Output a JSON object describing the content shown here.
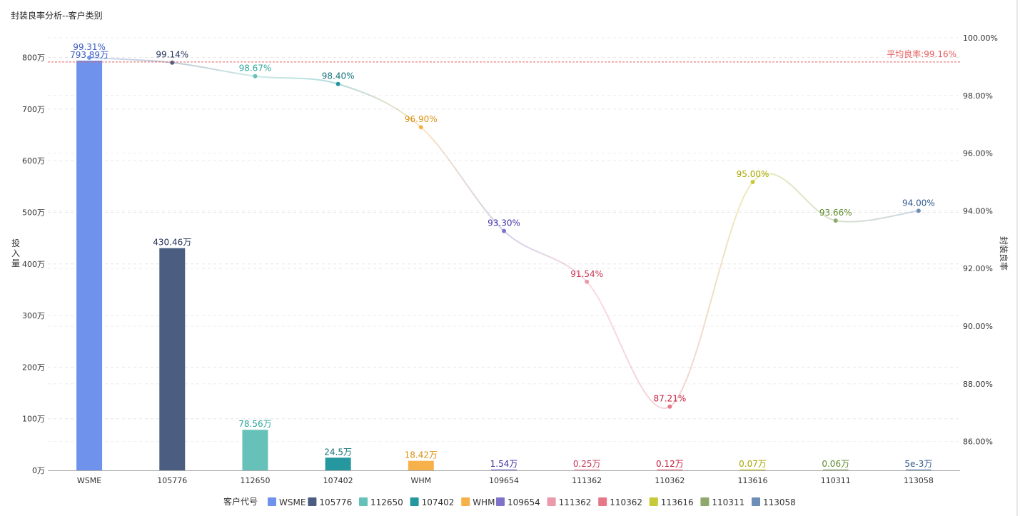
{
  "chart_data": {
    "type": "bar",
    "title": "封装良率分析--客户类别",
    "xlabel": "",
    "x_axis_categories": [
      "WSME",
      "105776",
      "112650",
      "107402",
      "WHM",
      "109654",
      "111362",
      "110362",
      "113616",
      "110311",
      "113058"
    ],
    "ylabel_left": "投入量",
    "ylabel_right": "封装良率",
    "ylim_left": [
      0,
      800
    ],
    "ylim_right": [
      85,
      100
    ],
    "left_ticks": [
      "0万",
      "100万",
      "200万",
      "300万",
      "400万",
      "500万",
      "600万",
      "700万",
      "800万"
    ],
    "right_ticks": [
      "86.00%",
      "88.00%",
      "90.00%",
      "92.00%",
      "94.00%",
      "96.00%",
      "98.00%",
      "100.00%"
    ],
    "grid": true,
    "legend_title": "客户代号",
    "legend_position": "bottom",
    "series": [
      {
        "name": "投入量",
        "type": "bar",
        "unit": "万",
        "values": [
          793.89,
          430.46,
          78.56,
          24.5,
          18.42,
          1.54,
          0.25,
          0.12,
          0.07,
          0.06,
          0.005
        ]
      },
      {
        "name": "封装良率",
        "type": "line",
        "unit": "%",
        "values": [
          99.31,
          99.14,
          98.67,
          98.4,
          96.9,
          93.3,
          91.54,
          87.21,
          95.0,
          93.66,
          94.0
        ]
      }
    ],
    "bar_labels": [
      "793.89万",
      "430.46万",
      "78.56万",
      "24.5万",
      "18.42万",
      "1.54万",
      "0.25万",
      "0.12万",
      "0.07万",
      "0.06万",
      "5e-3万"
    ],
    "line_labels": [
      "99.31%",
      "99.14%",
      "98.67%",
      "98.40%",
      "96.90%",
      "93.30%",
      "91.54%",
      "87.21%",
      "95.00%",
      "93.66%",
      "94.00%"
    ],
    "legend_entries": [
      "WSME",
      "105776",
      "112650",
      "107402",
      "WHM",
      "109654",
      "111362",
      "110362",
      "113616",
      "110311",
      "113058"
    ],
    "colors": [
      "#6f93ec",
      "#4b5e81",
      "#66c2b9",
      "#24979f",
      "#f6b14b",
      "#7e73c9",
      "#eb9aab",
      "#e57787",
      "#c7c937",
      "#8fa96d",
      "#6e8db7"
    ],
    "label_colors": [
      "#3a5bbf",
      "#24335b",
      "#2aa79b",
      "#14727a",
      "#d9910f",
      "#3b2fa6",
      "#c93657",
      "#c41e3a",
      "#a8a600",
      "#5c8a2b",
      "#2f5a90"
    ],
    "average_line": {
      "label": "平均良率:99.16%",
      "value": 99.16,
      "color": "#e65c5c"
    }
  }
}
